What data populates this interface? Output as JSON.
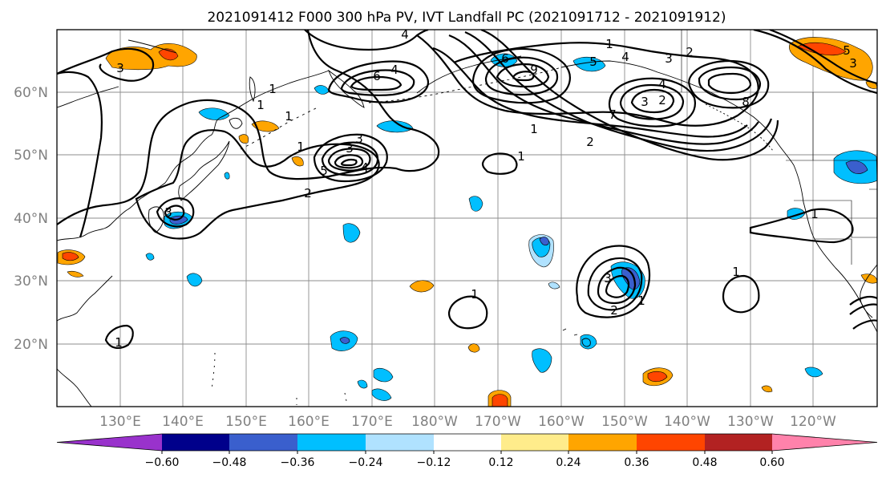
{
  "title": "2021091412 F000 300 hPa PV, IVT Landfall PC (2021091712 - 2021091912)",
  "lat_labels": [
    "60°N",
    "50°N",
    "40°N",
    "30°N",
    "20°N"
  ],
  "lon_labels": [
    "130°E",
    "140°E",
    "150°E",
    "160°E",
    "170°E",
    "180°W",
    "170°W",
    "160°W",
    "150°W",
    "140°W",
    "130°W",
    "120°W"
  ],
  "colorbar": {
    "colors": [
      "#9932CC",
      "#00008B",
      "#3A5FCD",
      "#00BFFF",
      "#B0E2FF",
      "#FFFFFF",
      "#FFEC8B",
      "#FFA500",
      "#FF4500",
      "#B22222",
      "#FF82AB"
    ],
    "tick_labels": [
      "−0.60",
      "−0.48",
      "−0.36",
      "−0.24",
      "−0.12",
      "0.12",
      "0.24",
      "0.36",
      "0.48",
      "0.60"
    ]
  },
  "contour_labels": [
    "1",
    "2",
    "3",
    "4",
    "5",
    "6",
    "7",
    "8",
    "9"
  ]
}
